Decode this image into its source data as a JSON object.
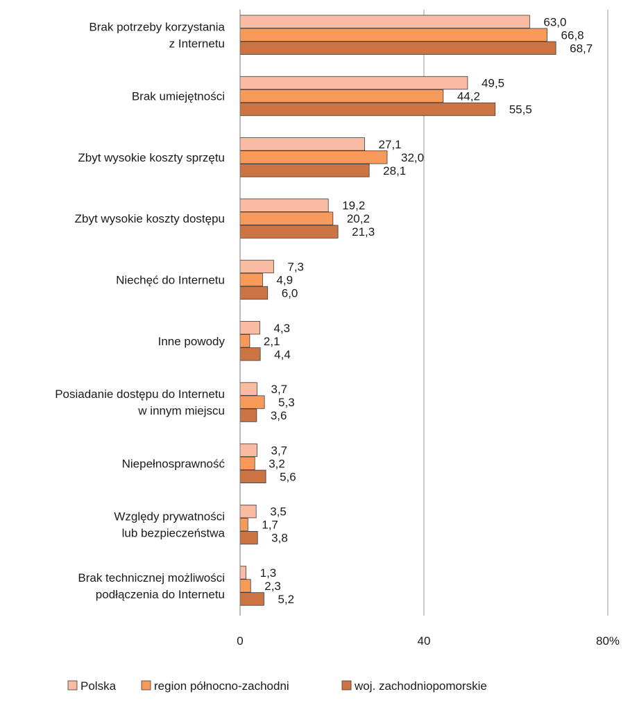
{
  "chart_data": {
    "type": "bar",
    "orientation": "horizontal",
    "categories": [
      [
        "Brak potrzeby korzystania",
        "z Internetu"
      ],
      [
        "Brak umiejętności"
      ],
      [
        "Zbyt wysokie koszty sprzętu"
      ],
      [
        "Zbyt wysokie koszty dostępu"
      ],
      [
        "Niechęć do Internetu"
      ],
      [
        "Inne powody"
      ],
      [
        "Posiadanie dostępu do Internetu",
        "w innym miejscu"
      ],
      [
        "Niepełnosprawność"
      ],
      [
        "Względy prywatności",
        "lub bezpieczeństwa"
      ],
      [
        "Brak technicznej możliwości",
        "podłączenia do Internetu"
      ]
    ],
    "series": [
      {
        "name": "Polska",
        "color": "#F9BBA2",
        "values": [
          63.0,
          49.5,
          27.1,
          19.2,
          7.3,
          4.3,
          3.7,
          3.7,
          3.5,
          1.3
        ],
        "labels": [
          "63,0",
          "49,5",
          "27,1",
          "19,2",
          "7,3",
          "4,3",
          "3,7",
          "3,7",
          "3,5",
          "1,3"
        ]
      },
      {
        "name": "region północno-zachodni",
        "color": "#F79A5A",
        "values": [
          66.8,
          44.2,
          32.0,
          20.2,
          4.9,
          2.1,
          5.3,
          3.2,
          1.7,
          2.3
        ],
        "labels": [
          "66,8",
          "44,2",
          "32,0",
          "20,2",
          "4,9",
          "2,1",
          "5,3",
          "3,2",
          "1,7",
          "2,3"
        ]
      },
      {
        "name": "woj. zachodniopomorskie",
        "color": "#CC7443",
        "values": [
          68.7,
          55.5,
          28.1,
          21.3,
          6.0,
          4.4,
          3.6,
          5.6,
          3.8,
          5.2
        ],
        "labels": [
          "68,7",
          "55,5",
          "28,1",
          "21,3",
          "6,0",
          "4,4",
          "3,6",
          "5,6",
          "3,8",
          "5,2"
        ]
      }
    ],
    "xlim": [
      0,
      80
    ],
    "xticks": [
      0,
      40,
      80
    ],
    "xtick_labels": [
      "0",
      "40",
      "80%"
    ],
    "grid": "vertical",
    "legend": "bottom"
  }
}
